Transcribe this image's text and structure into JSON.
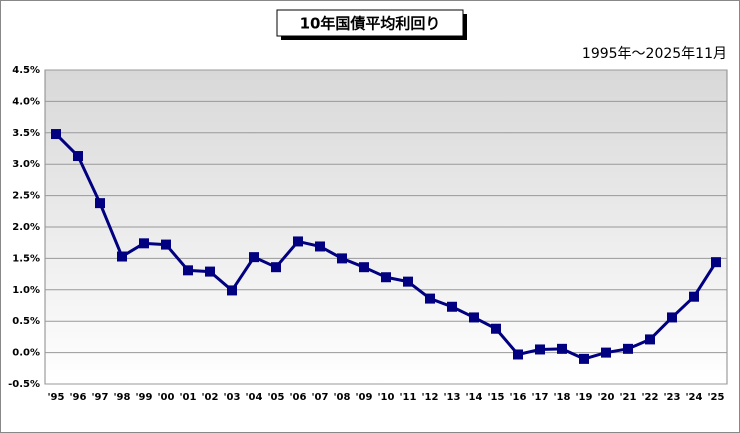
{
  "chart_data": {
    "type": "line",
    "title": "10年国債平均利回り",
    "subtitle": "1995年～2025年11月",
    "categories": [
      "'95",
      "'96",
      "'97",
      "'98",
      "'99",
      "'00",
      "'01",
      "'02",
      "'03",
      "'04",
      "'05",
      "'06",
      "'07",
      "'08",
      "'09",
      "'10",
      "'11",
      "'12",
      "'13",
      "'14",
      "'15",
      "'16",
      "'17",
      "'18",
      "'19",
      "'20",
      "'21",
      "'22",
      "'23",
      "'24",
      "'25"
    ],
    "values": [
      3.48,
      3.13,
      2.38,
      1.53,
      1.74,
      1.72,
      1.31,
      1.29,
      0.99,
      1.52,
      1.36,
      1.77,
      1.69,
      1.5,
      1.36,
      1.2,
      1.13,
      0.86,
      0.73,
      0.56,
      0.38,
      -0.03,
      0.05,
      0.06,
      -0.1,
      0.0,
      0.06,
      0.21,
      0.56,
      0.89,
      1.44
    ],
    "color": "#000080",
    "ylim": [
      -0.5,
      4.5
    ],
    "yticks": [
      {
        "value": -0.5,
        "label": "-0.5%"
      },
      {
        "value": 0,
        "label": "0.0%"
      },
      {
        "value": 0.5,
        "label": "0.5%"
      },
      {
        "value": 1,
        "label": "1.0%"
      },
      {
        "value": 1.5,
        "label": "1.5%"
      },
      {
        "value": 2,
        "label": "2.0%"
      },
      {
        "value": 2.5,
        "label": "2.5%"
      },
      {
        "value": 3,
        "label": "3.0%"
      },
      {
        "value": 3.5,
        "label": "3.5%"
      },
      {
        "value": 4,
        "label": "4.0%"
      },
      {
        "value": 4.5,
        "label": "4.5%"
      }
    ],
    "grid": true
  }
}
